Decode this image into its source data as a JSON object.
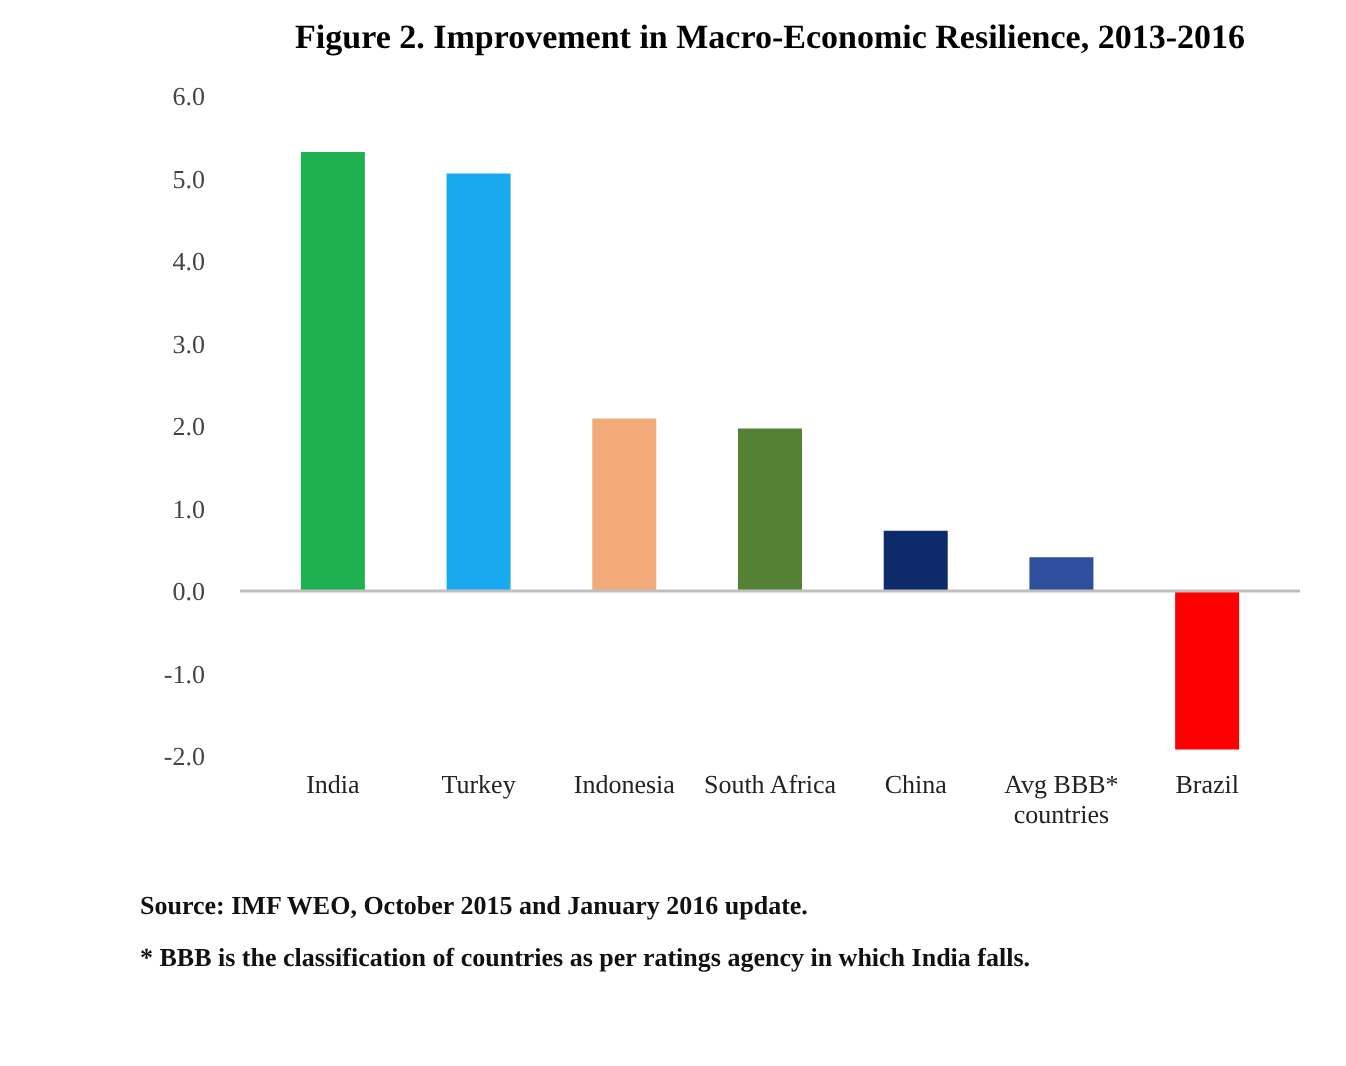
{
  "chart_data": {
    "type": "bar",
    "title": "Figure 2. Improvement in Macro-Economic Resilience, 2013-2016",
    "categories": [
      "India",
      "Turkey",
      "Indonesia",
      "South Africa",
      "China",
      "Avg BBB* countries",
      "Brazil"
    ],
    "values": [
      5.32,
      5.06,
      2.09,
      1.97,
      0.73,
      0.41,
      -1.92
    ],
    "colors": [
      "#1fb04f",
      "#19a9ee",
      "#f2aa78",
      "#548235",
      "#0d2a6b",
      "#2e4f9e",
      "#fe0000"
    ],
    "ylim": [
      -2,
      6
    ],
    "yticks": [
      {
        "value": -2,
        "label": "-2.0"
      },
      {
        "value": -1,
        "label": "-1.0"
      },
      {
        "value": 0,
        "label": "0.0"
      },
      {
        "value": 1,
        "label": "1.0"
      },
      {
        "value": 2,
        "label": "2.0"
      },
      {
        "value": 3,
        "label": "3.0"
      },
      {
        "value": 4,
        "label": "4.0"
      },
      {
        "value": 5,
        "label": "5.0"
      },
      {
        "value": 6,
        "label": "6.0"
      }
    ],
    "ref_lines": [
      {
        "axis": "y",
        "value": 0,
        "color": "#bfbfbf"
      }
    ],
    "grid": false,
    "annotations": [
      "Source: IMF WEO, October 2015 and January 2016 update.",
      "* BBB is the classification of countries as per ratings agency in which India falls."
    ]
  }
}
